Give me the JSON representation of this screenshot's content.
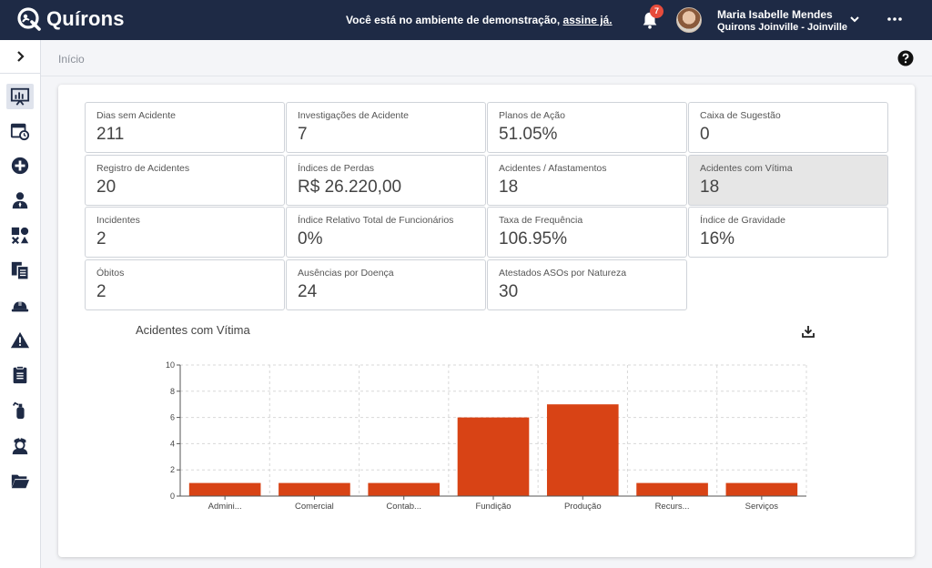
{
  "header": {
    "brand": "Quírons",
    "demo_message": "Você está no ambiente de demonstração,",
    "demo_link": "assine já.",
    "notification_count": "7",
    "user_name": "Maria Isabelle Mendes",
    "user_org": "Quirons Joinville - Joinville"
  },
  "breadcrumb": {
    "current": "Início"
  },
  "sidebar": {
    "items": [
      {
        "icon": "dashboard-icon"
      },
      {
        "icon": "calendar-clock-icon"
      },
      {
        "icon": "plus-circle-icon"
      },
      {
        "icon": "user-tie-icon"
      },
      {
        "icon": "shapes-icon"
      },
      {
        "icon": "documents-icon"
      },
      {
        "icon": "hard-hat-icon"
      },
      {
        "icon": "warning-icon"
      },
      {
        "icon": "clipboard-icon"
      },
      {
        "icon": "fire-extinguisher-icon"
      },
      {
        "icon": "nurse-icon"
      },
      {
        "icon": "folder-open-icon"
      }
    ]
  },
  "kpis": [
    {
      "label": "Dias sem Acidente",
      "value": "211"
    },
    {
      "label": "Investigações de Acidente",
      "value": "7"
    },
    {
      "label": "Planos de Ação",
      "value": "51.05%"
    },
    {
      "label": "Caixa de Sugestão",
      "value": "0"
    },
    {
      "label": "Registro de Acidentes",
      "value": "20"
    },
    {
      "label": "Índices de Perdas",
      "value": "R$ 26.220,00"
    },
    {
      "label": "Acidentes / Afastamentos",
      "value": "18"
    },
    {
      "label": "Acidentes com Vítima",
      "value": "18"
    },
    {
      "label": "Incidentes",
      "value": "2"
    },
    {
      "label": "Índice Relativo Total de Funcionários",
      "value": "0%"
    },
    {
      "label": "Taxa de Frequência",
      "value": "106.95%"
    },
    {
      "label": "Índice de Gravidade",
      "value": "16%"
    },
    {
      "label": "Óbitos",
      "value": "2"
    },
    {
      "label": "Ausências por Doença",
      "value": "24"
    },
    {
      "label": "Atestados ASOs por Natureza",
      "value": "30"
    }
  ],
  "selected_kpi": "Acidentes com Vítima",
  "colors": {
    "bar": "#d84315",
    "topbar": "#1e2a45"
  },
  "chart_data": {
    "type": "bar",
    "title": "Acidentes com Vítima",
    "categories": [
      "Admini...",
      "Comercial",
      "Contab...",
      "Fundição",
      "Produção",
      "Recurs...",
      "Serviços"
    ],
    "values": [
      1,
      1,
      1,
      6,
      7,
      1,
      1
    ],
    "ylim": [
      0,
      10
    ],
    "yticks": [
      0,
      2,
      4,
      6,
      8,
      10
    ],
    "grid": true
  }
}
